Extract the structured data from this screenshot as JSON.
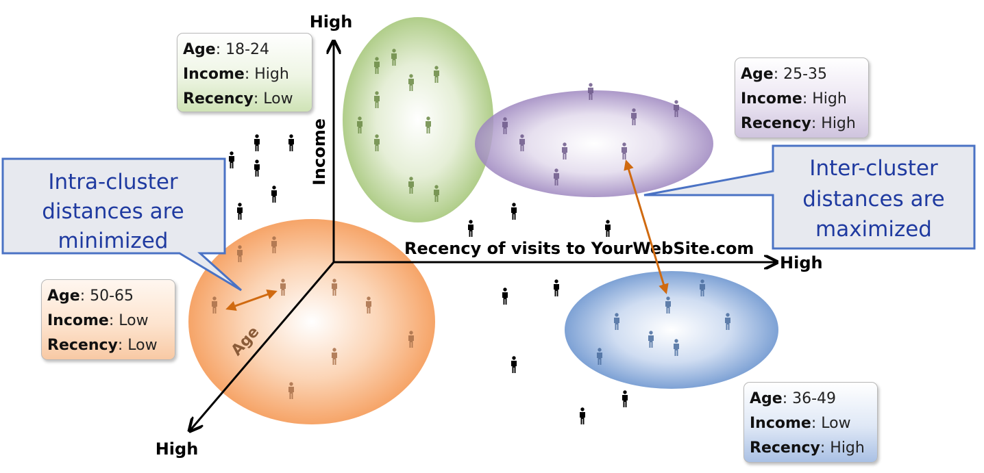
{
  "axes": {
    "income_label": "Income",
    "income_high": "High",
    "recency_label": "Recency of visits to YourWebSite.com",
    "recency_high": "High",
    "age_label": "Age",
    "age_high": "High"
  },
  "clusters": {
    "green": {
      "color": "#9bbb59",
      "age_label": "Age",
      "age_value": ": 18-24",
      "income_label": "Income",
      "income_value": ": High",
      "recency_label": "Recency",
      "recency_value": ": Low"
    },
    "purple": {
      "color": "#8064a2",
      "age_label": "Age",
      "age_value": ": 25-35",
      "income_label": "Income",
      "income_value": ": High",
      "recency_label": "Recency",
      "recency_value": ": High"
    },
    "orange": {
      "color": "#f79646",
      "age_label": "Age",
      "age_value": ": 50-65",
      "income_label": "Income",
      "income_value": ": Low",
      "recency_label": "Recency",
      "recency_value": ": Low"
    },
    "blue": {
      "color": "#4f81bd",
      "age_label": "Age",
      "age_value": ": 36-49",
      "income_label": "Income",
      "income_value": ": Low",
      "recency_label": "Recency",
      "recency_value": ": High"
    }
  },
  "callouts": {
    "intra": {
      "line1": "Intra-cluster",
      "line2": "distances are",
      "line3": "minimized"
    },
    "inter": {
      "line1": "Inter-cluster",
      "line2": "distances are",
      "line3": "maximized"
    }
  },
  "colors": {
    "callout_text": "#1f3aa0",
    "callout_border": "#4a72c4",
    "arrow": "#d06a10"
  }
}
